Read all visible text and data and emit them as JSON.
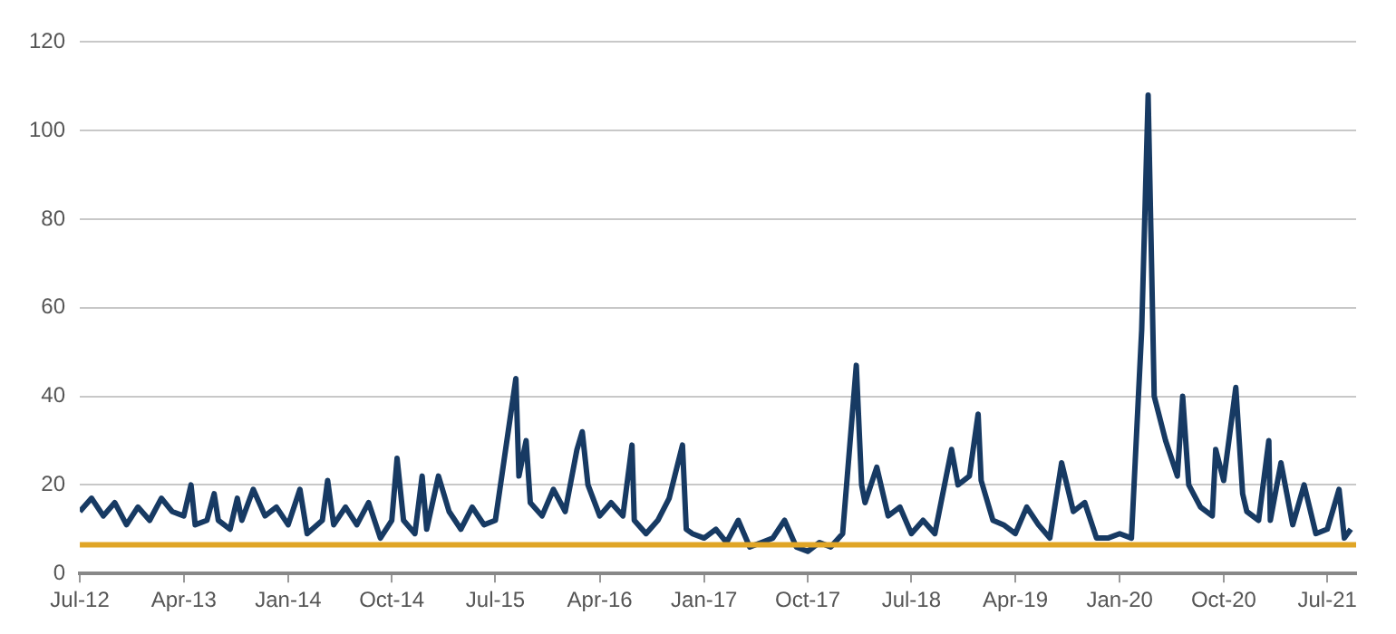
{
  "chart_data": {
    "type": "line",
    "x": [
      "2012-07-01",
      "2012-08-01",
      "2012-09-01",
      "2012-10-01",
      "2012-11-01",
      "2012-12-01",
      "2013-01-01",
      "2013-02-01",
      "2013-03-01",
      "2013-04-01",
      "2013-04-20",
      "2013-05-01",
      "2013-06-01",
      "2013-06-20",
      "2013-07-01",
      "2013-08-01",
      "2013-08-20",
      "2013-09-01",
      "2013-10-01",
      "2013-11-01",
      "2013-12-01",
      "2014-01-01",
      "2014-02-01",
      "2014-02-20",
      "2014-04-01",
      "2014-04-15",
      "2014-05-01",
      "2014-06-01",
      "2014-07-01",
      "2014-08-01",
      "2014-09-01",
      "2014-10-01",
      "2014-10-15",
      "2014-11-01",
      "2014-12-01",
      "2014-12-20",
      "2015-01-01",
      "2015-02-01",
      "2015-03-01",
      "2015-04-01",
      "2015-05-01",
      "2015-06-01",
      "2015-07-01",
      "2015-08-24",
      "2015-09-01",
      "2015-09-20",
      "2015-10-01",
      "2015-11-01",
      "2015-12-01",
      "2016-01-01",
      "2016-02-01",
      "2016-02-15",
      "2016-03-01",
      "2016-04-01",
      "2016-05-01",
      "2016-06-01",
      "2016-06-25",
      "2016-07-01",
      "2016-08-01",
      "2016-09-01",
      "2016-10-01",
      "2016-11-05",
      "2016-11-15",
      "2016-12-01",
      "2017-01-01",
      "2017-02-01",
      "2017-03-01",
      "2017-04-01",
      "2017-05-01",
      "2017-06-01",
      "2017-07-01",
      "2017-08-01",
      "2017-09-01",
      "2017-10-01",
      "2017-11-01",
      "2017-12-01",
      "2018-01-01",
      "2018-02-06",
      "2018-02-20",
      "2018-03-01",
      "2018-04-01",
      "2018-05-01",
      "2018-06-01",
      "2018-07-01",
      "2018-08-01",
      "2018-09-01",
      "2018-10-15",
      "2018-11-01",
      "2018-12-01",
      "2018-12-24",
      "2019-01-01",
      "2019-02-01",
      "2019-03-01",
      "2019-04-01",
      "2019-05-01",
      "2019-06-01",
      "2019-07-01",
      "2019-08-01",
      "2019-09-01",
      "2019-10-01",
      "2019-11-01",
      "2019-12-01",
      "2020-01-01",
      "2020-02-01",
      "2020-02-28",
      "2020-03-16",
      "2020-03-25",
      "2020-04-01",
      "2020-05-01",
      "2020-06-01",
      "2020-06-15",
      "2020-07-01",
      "2020-08-01",
      "2020-09-01",
      "2020-09-10",
      "2020-10-01",
      "2020-11-02",
      "2020-11-20",
      "2020-12-01",
      "2021-01-01",
      "2021-01-28",
      "2021-02-01",
      "2021-03-01",
      "2021-04-01",
      "2021-05-01",
      "2021-06-01",
      "2021-07-01",
      "2021-08-01",
      "2021-08-15",
      "2021-09-01"
    ],
    "series": [
      {
        "color": "#173a63",
        "values": [
          14,
          17,
          13,
          16,
          11,
          15,
          12,
          17,
          14,
          13,
          20,
          11,
          12,
          18,
          12,
          10,
          17,
          12,
          19,
          13,
          15,
          11,
          19,
          9,
          12,
          21,
          11,
          15,
          11,
          16,
          8,
          12,
          26,
          12,
          9,
          22,
          10,
          22,
          14,
          10,
          15,
          11,
          12,
          44,
          22,
          30,
          16,
          13,
          19,
          14,
          28,
          32,
          20,
          13,
          16,
          13,
          29,
          12,
          9,
          12,
          17,
          29,
          10,
          9,
          8,
          10,
          7,
          12,
          6,
          7,
          8,
          12,
          6,
          5,
          7,
          6,
          9,
          47,
          20,
          16,
          24,
          13,
          15,
          9,
          12,
          9,
          28,
          20,
          22,
          36,
          21,
          12,
          11,
          9,
          15,
          11,
          8,
          25,
          14,
          16,
          8,
          8,
          9,
          8,
          55,
          108,
          70,
          40,
          30,
          22,
          40,
          20,
          15,
          13,
          28,
          21,
          42,
          18,
          14,
          12,
          30,
          12,
          25,
          11,
          20,
          9,
          10,
          19,
          8,
          10
        ]
      }
    ],
    "xlim": [
      "2012-07-01",
      "2021-09-15"
    ],
    "xticks": [
      {
        "value": "2012-07-01",
        "label": "Jul-12"
      },
      {
        "value": "2013-04-01",
        "label": "Apr-13"
      },
      {
        "value": "2014-01-01",
        "label": "Jan-14"
      },
      {
        "value": "2014-10-01",
        "label": "Oct-14"
      },
      {
        "value": "2015-07-01",
        "label": "Jul-15"
      },
      {
        "value": "2016-04-01",
        "label": "Apr-16"
      },
      {
        "value": "2017-01-01",
        "label": "Jan-17"
      },
      {
        "value": "2017-10-01",
        "label": "Oct-17"
      },
      {
        "value": "2018-07-01",
        "label": "Jul-18"
      },
      {
        "value": "2019-04-01",
        "label": "Apr-19"
      },
      {
        "value": "2020-01-01",
        "label": "Jan-20"
      },
      {
        "value": "2020-10-01",
        "label": "Oct-20"
      },
      {
        "value": "2021-07-01",
        "label": "Jul-21"
      }
    ],
    "ylim": [
      0,
      120
    ],
    "yticks": [
      0,
      20,
      40,
      60,
      80,
      100,
      120
    ],
    "grid": "y",
    "marker": "none",
    "line_style": "solid",
    "ref_lines": [
      {
        "axis": "y",
        "value": 6.5,
        "color": "#e0a526"
      }
    ]
  }
}
